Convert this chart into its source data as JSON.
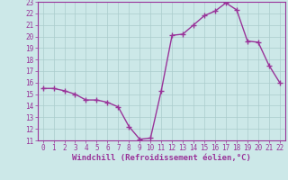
{
  "x": [
    0,
    1,
    2,
    3,
    4,
    5,
    6,
    7,
    8,
    9,
    10,
    11,
    12,
    13,
    14,
    15,
    16,
    17,
    18,
    19,
    20,
    21,
    22
  ],
  "y": [
    15.5,
    15.5,
    15.3,
    15.0,
    14.5,
    14.5,
    14.3,
    13.9,
    12.2,
    11.1,
    11.2,
    15.3,
    20.1,
    20.2,
    21.0,
    21.8,
    22.2,
    22.9,
    22.3,
    19.6,
    19.5,
    17.5,
    16.0
  ],
  "line_color": "#993399",
  "marker_color": "#993399",
  "background_color": "#cce8e8",
  "grid_color": "#aacccc",
  "xlabel": "Windchill (Refroidissement éolien,°C)",
  "xlim": [
    -0.5,
    22.5
  ],
  "ylim": [
    11,
    23
  ],
  "yticks": [
    11,
    12,
    13,
    14,
    15,
    16,
    17,
    18,
    19,
    20,
    21,
    22,
    23
  ],
  "xticks": [
    0,
    1,
    2,
    3,
    4,
    5,
    6,
    7,
    8,
    9,
    10,
    11,
    12,
    13,
    14,
    15,
    16,
    17,
    18,
    19,
    20,
    21,
    22
  ],
  "tick_fontsize": 5.5,
  "label_fontsize": 6.5,
  "line_width": 1.0,
  "marker_size": 2.5
}
